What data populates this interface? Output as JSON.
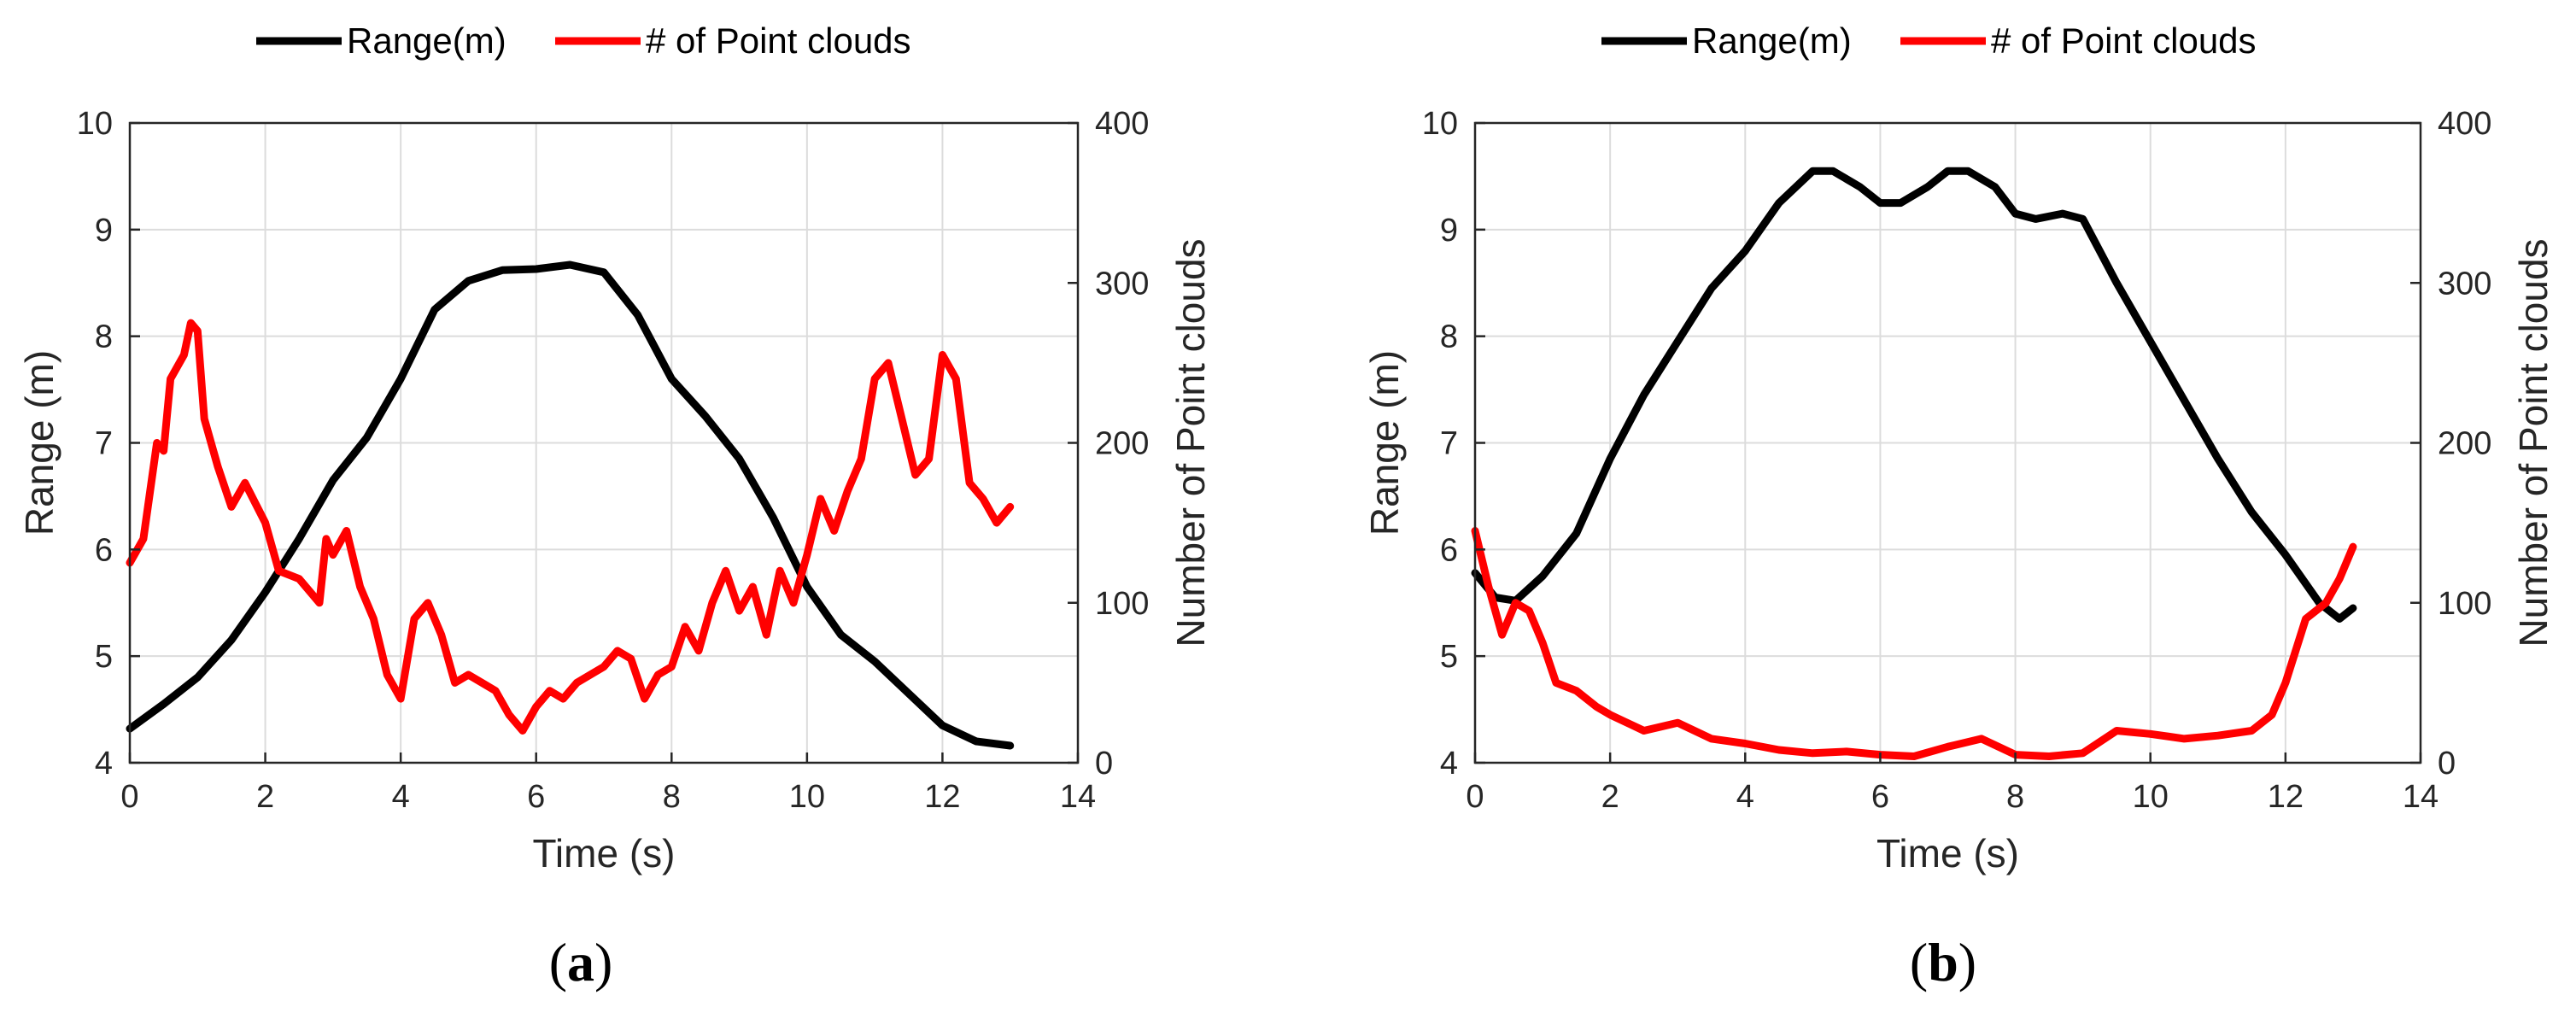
{
  "chart_data": [
    {
      "type": "line",
      "panel_label_open": "(",
      "panel_label_letter": "a",
      "panel_label_close": ")",
      "xlabel": "Time (s)",
      "ylabel": "Range (m)",
      "y2label": "Number of Point clouds",
      "xlim": [
        0,
        14
      ],
      "ylim": [
        4,
        10
      ],
      "y2lim": [
        0,
        400
      ],
      "xticks": [
        "0",
        "2",
        "4",
        "6",
        "8",
        "10",
        "12",
        "14"
      ],
      "yticks": [
        "4",
        "5",
        "6",
        "7",
        "8",
        "9",
        "10"
      ],
      "y2ticks": [
        "0",
        "100",
        "200",
        "300",
        "400"
      ],
      "grid": true,
      "legend_position": "top",
      "series": [
        {
          "name": "Range(m)",
          "axis": "left",
          "color": "#000000",
          "x": [
            0,
            0.5,
            1,
            1.5,
            2,
            2.5,
            3,
            3.5,
            4,
            4.5,
            5,
            5.5,
            6,
            6.5,
            7,
            7.5,
            8,
            8.5,
            9,
            9.5,
            10,
            10.5,
            11,
            11.5,
            12,
            12.5,
            13
          ],
          "y": [
            4.32,
            4.55,
            4.8,
            5.15,
            5.6,
            6.1,
            6.65,
            7.05,
            7.6,
            8.25,
            8.52,
            8.62,
            8.63,
            8.67,
            8.6,
            8.2,
            7.6,
            7.25,
            6.85,
            6.3,
            5.65,
            5.2,
            4.95,
            4.65,
            4.35,
            4.2,
            4.16
          ]
        },
        {
          "name": "# of Point clouds",
          "axis": "right",
          "color": "#ff0000",
          "x": [
            0,
            0.2,
            0.4,
            0.5,
            0.6,
            0.8,
            0.9,
            1.0,
            1.1,
            1.3,
            1.5,
            1.7,
            2.0,
            2.2,
            2.5,
            2.8,
            2.9,
            3.0,
            3.2,
            3.4,
            3.6,
            3.8,
            4.0,
            4.2,
            4.4,
            4.6,
            4.8,
            5.0,
            5.2,
            5.4,
            5.6,
            5.8,
            6.0,
            6.2,
            6.4,
            6.6,
            6.8,
            7.0,
            7.2,
            7.4,
            7.6,
            7.8,
            8.0,
            8.2,
            8.4,
            8.6,
            8.8,
            9.0,
            9.2,
            9.4,
            9.6,
            9.8,
            10.0,
            10.2,
            10.4,
            10.6,
            10.8,
            11.0,
            11.2,
            11.4,
            11.6,
            11.8,
            12.0,
            12.2,
            12.4,
            12.6,
            12.8,
            13.0
          ],
          "y": [
            125,
            140,
            200,
            195,
            240,
            255,
            275,
            270,
            215,
            185,
            160,
            175,
            150,
            120,
            115,
            100,
            140,
            130,
            145,
            110,
            90,
            55,
            40,
            90,
            100,
            80,
            50,
            55,
            50,
            45,
            30,
            20,
            35,
            45,
            40,
            50,
            55,
            60,
            70,
            65,
            40,
            55,
            60,
            85,
            70,
            100,
            120,
            95,
            110,
            80,
            120,
            100,
            130,
            165,
            145,
            170,
            190,
            240,
            250,
            215,
            180,
            190,
            255,
            240,
            175,
            165,
            150,
            160
          ]
        }
      ]
    },
    {
      "type": "line",
      "panel_label_open": "(",
      "panel_label_letter": "b",
      "panel_label_close": ")",
      "xlabel": "Time (s)",
      "ylabel": "Range (m)",
      "y2label": "Number of Point clouds",
      "xlim": [
        0,
        14
      ],
      "ylim": [
        4,
        10
      ],
      "y2lim": [
        0,
        400
      ],
      "xticks": [
        "0",
        "2",
        "4",
        "6",
        "8",
        "10",
        "12",
        "14"
      ],
      "yticks": [
        "4",
        "5",
        "6",
        "7",
        "8",
        "9",
        "10"
      ],
      "y2ticks": [
        "0",
        "100",
        "200",
        "300",
        "400"
      ],
      "grid": true,
      "legend_position": "top",
      "series": [
        {
          "name": "Range(m)",
          "axis": "left",
          "color": "#000000",
          "x": [
            0,
            0.3,
            0.6,
            1.0,
            1.5,
            2.0,
            2.5,
            3.0,
            3.5,
            4.0,
            4.5,
            5.0,
            5.3,
            5.7,
            6.0,
            6.3,
            6.7,
            7.0,
            7.3,
            7.7,
            8.0,
            8.3,
            8.7,
            9.0,
            9.5,
            10.0,
            10.5,
            11.0,
            11.5,
            12.0,
            12.5,
            12.8,
            13.0
          ],
          "y": [
            5.78,
            5.55,
            5.52,
            5.75,
            6.15,
            6.85,
            7.45,
            7.95,
            8.45,
            8.8,
            9.25,
            9.55,
            9.55,
            9.4,
            9.25,
            9.25,
            9.4,
            9.55,
            9.55,
            9.4,
            9.15,
            9.1,
            9.15,
            9.1,
            8.5,
            7.95,
            7.4,
            6.85,
            6.35,
            5.95,
            5.5,
            5.35,
            5.45
          ]
        },
        {
          "name": "# of Point clouds",
          "axis": "right",
          "color": "#ff0000",
          "x": [
            0,
            0.2,
            0.4,
            0.6,
            0.8,
            1.0,
            1.2,
            1.5,
            1.8,
            2.0,
            2.5,
            3.0,
            3.5,
            4.0,
            4.5,
            5.0,
            5.5,
            6.0,
            6.5,
            7.0,
            7.5,
            8.0,
            8.5,
            9.0,
            9.5,
            10.0,
            10.5,
            11.0,
            11.5,
            11.8,
            12.0,
            12.3,
            12.6,
            12.8,
            13.0
          ],
          "y": [
            145,
            110,
            80,
            100,
            95,
            75,
            50,
            45,
            35,
            30,
            20,
            25,
            15,
            12,
            8,
            6,
            7,
            5,
            4,
            10,
            15,
            5,
            4,
            6,
            20,
            18,
            15,
            17,
            20,
            30,
            50,
            90,
            100,
            115,
            135
          ]
        }
      ]
    }
  ]
}
